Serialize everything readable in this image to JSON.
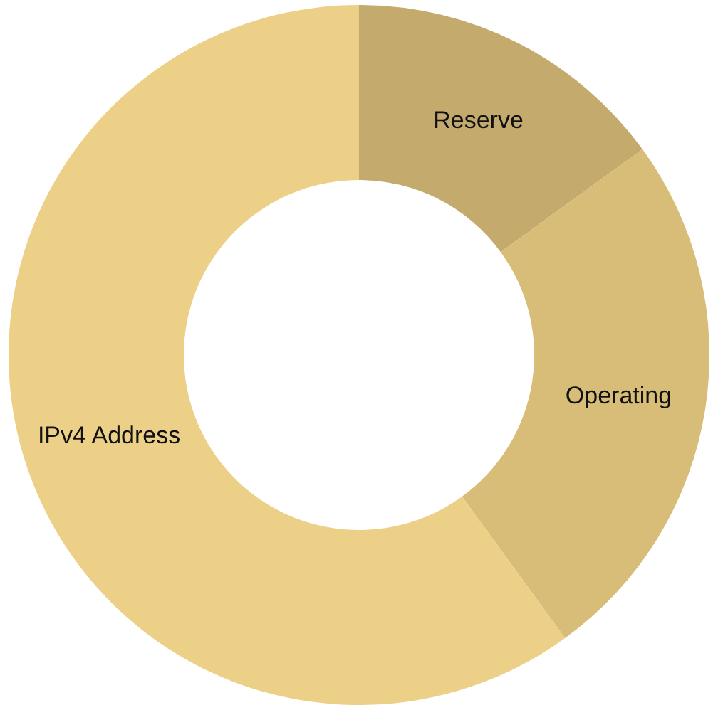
{
  "chart_data": {
    "type": "donut",
    "categories": [
      "Reserve",
      "Operating",
      "IPv4 Address"
    ],
    "values": [
      15,
      25,
      60
    ],
    "colors": [
      "#c4aa6c",
      "#d8bd78",
      "#edd088"
    ]
  }
}
